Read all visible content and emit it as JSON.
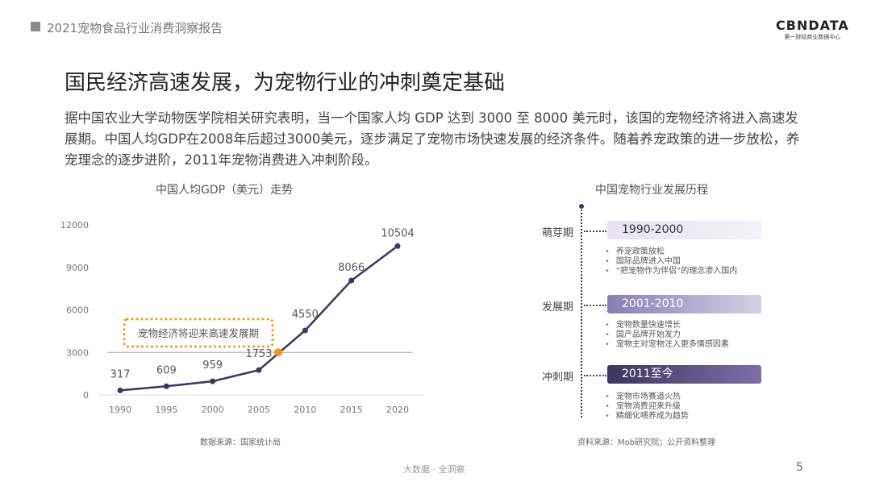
{
  "header": {
    "report_title": "2021宠物食品行业消费洞察报告",
    "logo_main": "CBNDATA",
    "logo_sub": "第一财经商业数据中心"
  },
  "title": "国民经济高速发展，为宠物行业的冲刺奠定基础",
  "description": "据中国农业大学动物医学院相关研究表明，当一个国家人均 GDP 达到 3000 至 8000 美元时，该国的宠物经济将进入高速发展期。中国人均GDP在2008年后超过3000美元，逐步满足了宠物市场快速发展的经济条件。随着养宠政策的进一步放松，养宠理念的逐步进阶，2011年宠物消费进入冲刺阶段。",
  "chart_data": {
    "type": "line",
    "title": "中国人均GDP（美元）走势",
    "x": [
      "1990",
      "1995",
      "2000",
      "2005",
      "2010",
      "2015",
      "2020"
    ],
    "series": [
      {
        "values": [
          317,
          609,
          959,
          1753,
          4550,
          8066,
          10504
        ]
      }
    ],
    "ylim": [
      0,
      12000
    ],
    "yticks": [
      "0",
      "3000",
      "6000",
      "9000",
      "12000"
    ],
    "threshold": {
      "value": 3000,
      "crossing_year": 2007.1,
      "color": "#f0961e"
    },
    "annotation": "宠物经济将迎来高速发展期",
    "line_color": "#3d3660",
    "grid": false,
    "source": "数据来源：国家统计局"
  },
  "timeline": {
    "title": "中国宠物行业发展历程",
    "stages": [
      {
        "label": "萌芽期",
        "period": "1990-2000",
        "items": [
          "养宠政策放松",
          "国际品牌进入中国",
          "“把宠物作为伴侣”的理念渗入国内"
        ]
      },
      {
        "label": "发展期",
        "period": "2001-2010",
        "items": [
          "宠物数量快速增长",
          "国产品牌开始发力",
          "宠物主对宠物注入更多情感因素"
        ]
      },
      {
        "label": "冲刺期",
        "period": "2011至今",
        "items": [
          "宠物市场赛道火热",
          "宠物消费迎来升级",
          "精细化喂养成为趋势"
        ]
      }
    ],
    "source": "资料来源：Mob研究院；公开资料整理"
  },
  "footer": {
    "text": "大数据 · 全洞察",
    "page": "5"
  }
}
